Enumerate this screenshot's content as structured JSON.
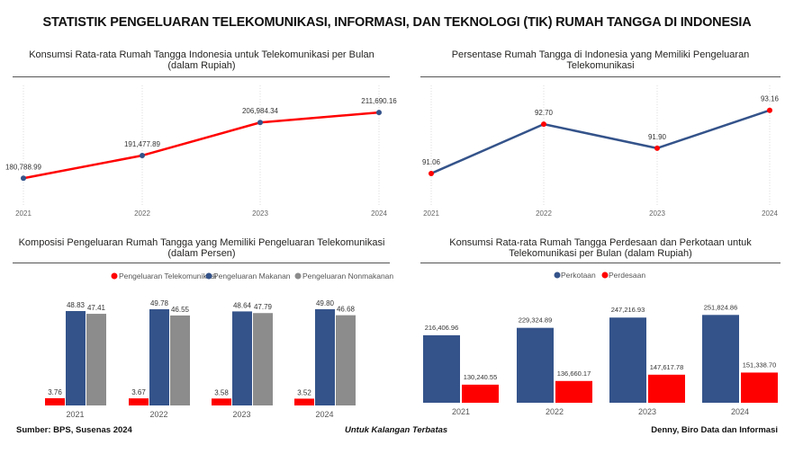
{
  "title": "STATISTIK PENGELUARAN TELEKOMUNIKASI, INFORMASI, DAN TEKNOLOGI (TIK) RUMAH TANGGA DI INDONESIA",
  "colors": {
    "red": "#ff0000",
    "blue": "#34538a",
    "gray": "#8c8c8c",
    "grid": "#dddddd"
  },
  "footer": {
    "left": "Sumber: BPS, Susenas 2024",
    "center": "Untuk Kalangan Terbatas",
    "right": "Denny, Biro Data dan Informasi"
  },
  "chart_data": [
    {
      "type": "line",
      "title_line1": "Konsumsi Rata-rata Rumah Tangga Indonesia untuk Telekomunikasi per Bulan",
      "title_line2": "(dalam Rupiah)",
      "categories": [
        "2021",
        "2022",
        "2023",
        "2024"
      ],
      "values": [
        180788.99,
        191477.89,
        206984.34,
        211690.16
      ],
      "labels": [
        "180,788.99",
        "191,477.89",
        "206,984.34",
        "211,690.16"
      ],
      "ylim": [
        175000,
        213000
      ],
      "line_color": "#ff0000",
      "marker_color": "#34538a",
      "grid": "vertical dotted"
    },
    {
      "type": "line",
      "title_line1": "Persentase Rumah Tangga di Indonesia yang Memiliki Pengeluaran",
      "title_line2": "Telekomunikasi",
      "categories": [
        "2021",
        "2022",
        "2023",
        "2024"
      ],
      "values": [
        91.06,
        92.7,
        91.9,
        93.16
      ],
      "labels": [
        "91.06",
        "92.70",
        "91.90",
        "93.16"
      ],
      "ylim": [
        90.7,
        93.45
      ],
      "line_color": "#34538a",
      "marker_color": "#ff0000",
      "grid": "vertical dotted"
    },
    {
      "type": "bar",
      "title_line1": "Komposisi Pengeluaran Rumah Tangga yang Memiliki Pengeluaran Telekomunikasi",
      "title_line2": "(dalam Persen)",
      "legend_position": "top",
      "categories": [
        "2021",
        "2022",
        "2023",
        "2024"
      ],
      "series": [
        {
          "name": "Pengeluaran Telekomunikasi",
          "color": "#ff0000",
          "values": [
            3.76,
            3.67,
            3.58,
            3.52
          ],
          "labels": [
            "3.76",
            "3.67",
            "3.58",
            "3.52"
          ]
        },
        {
          "name": "Pengeluaran Makanan",
          "color": "#34538a",
          "values": [
            48.83,
            49.78,
            48.64,
            49.8
          ],
          "labels": [
            "48.83",
            "49.78",
            "48.64",
            "49.80"
          ]
        },
        {
          "name": "Pengeluaran Nonmakanan",
          "color": "#8c8c8c",
          "values": [
            47.41,
            46.55,
            47.79,
            46.68
          ],
          "labels": [
            "47.41",
            "46.55",
            "47.79",
            "46.68"
          ]
        }
      ],
      "ylim": [
        0,
        52
      ]
    },
    {
      "type": "bar",
      "title_line1": "Konsumsi Rata-rata Rumah Tangga Perdesaan dan Perkotaan untuk",
      "title_line2": "Telekomunikasi per Bulan (dalam Rupiah)",
      "legend_position": "top",
      "categories": [
        "2021",
        "2022",
        "2023",
        "2024"
      ],
      "series": [
        {
          "name": "Perkotaan",
          "color": "#34538a",
          "values": [
            216406.96,
            229324.89,
            247216.93,
            251824.86
          ],
          "labels": [
            "216,406.96",
            "229,324.89",
            "247,216.93",
            "251,824.86"
          ]
        },
        {
          "name": "Perdesaan",
          "color": "#ff0000",
          "values": [
            130240.55,
            136660.17,
            147617.78,
            151338.7
          ],
          "labels": [
            "130,240.55",
            "136,660.17",
            "147,617.78",
            "151,338.70"
          ]
        }
      ],
      "ylim": [
        98700,
        260000
      ]
    }
  ]
}
